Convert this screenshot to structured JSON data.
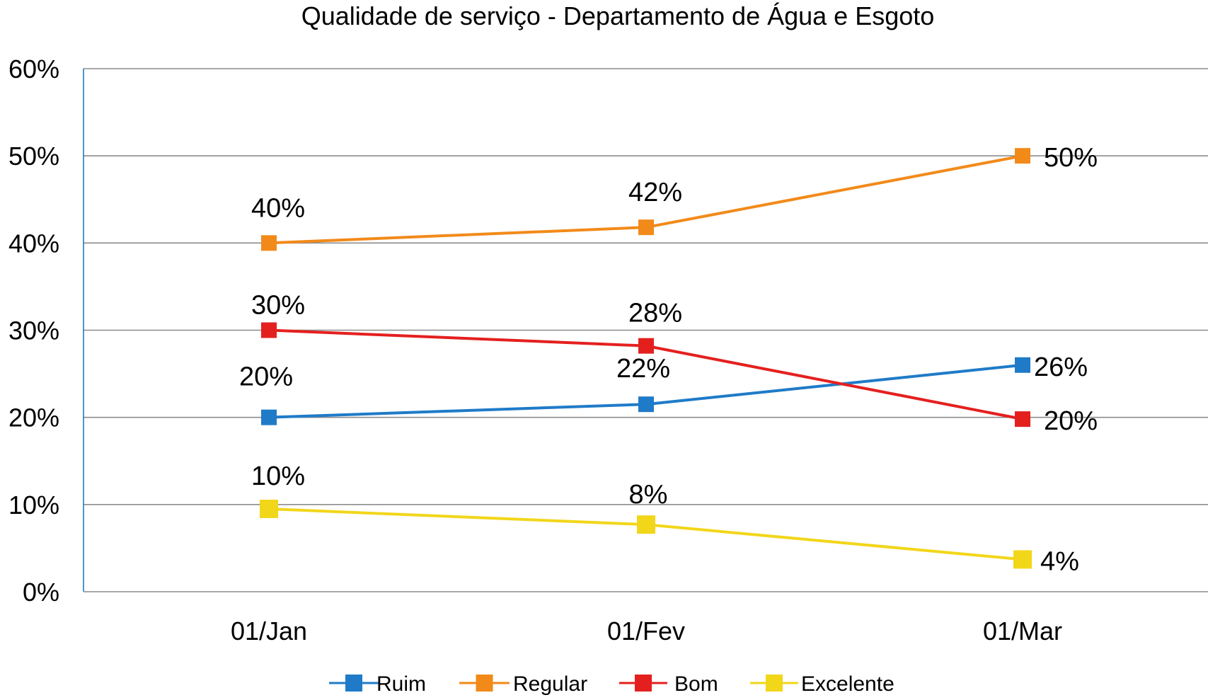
{
  "chart_data": {
    "type": "line",
    "title": "Qualidade de serviço - Departamento de Água e Esgoto",
    "categories": [
      "01/Jan",
      "01/Fev",
      "01/Mar"
    ],
    "y_ticks": [
      "0%",
      "10%",
      "20%",
      "30%",
      "40%",
      "50%",
      "60%"
    ],
    "ylim": [
      0,
      60
    ],
    "grid": true,
    "legend_position": "bottom",
    "series": [
      {
        "name": "Ruim",
        "color": "#1F7BC8",
        "values": [
          20,
          21.5,
          26
        ],
        "labels": [
          "20%",
          "22%",
          "26%"
        ]
      },
      {
        "name": "Regular",
        "color": "#F28A1A",
        "values": [
          40,
          41.8,
          50
        ],
        "labels": [
          "40%",
          "42%",
          "50%"
        ]
      },
      {
        "name": "Bom",
        "color": "#E4201F",
        "values": [
          30,
          28.2,
          19.8
        ],
        "labels": [
          "30%",
          "28%",
          "20%"
        ]
      },
      {
        "name": "Excelente",
        "color": "#F2D61A",
        "values": [
          9.5,
          7.7,
          3.7
        ],
        "labels": [
          "10%",
          "8%",
          "4%"
        ]
      }
    ]
  }
}
